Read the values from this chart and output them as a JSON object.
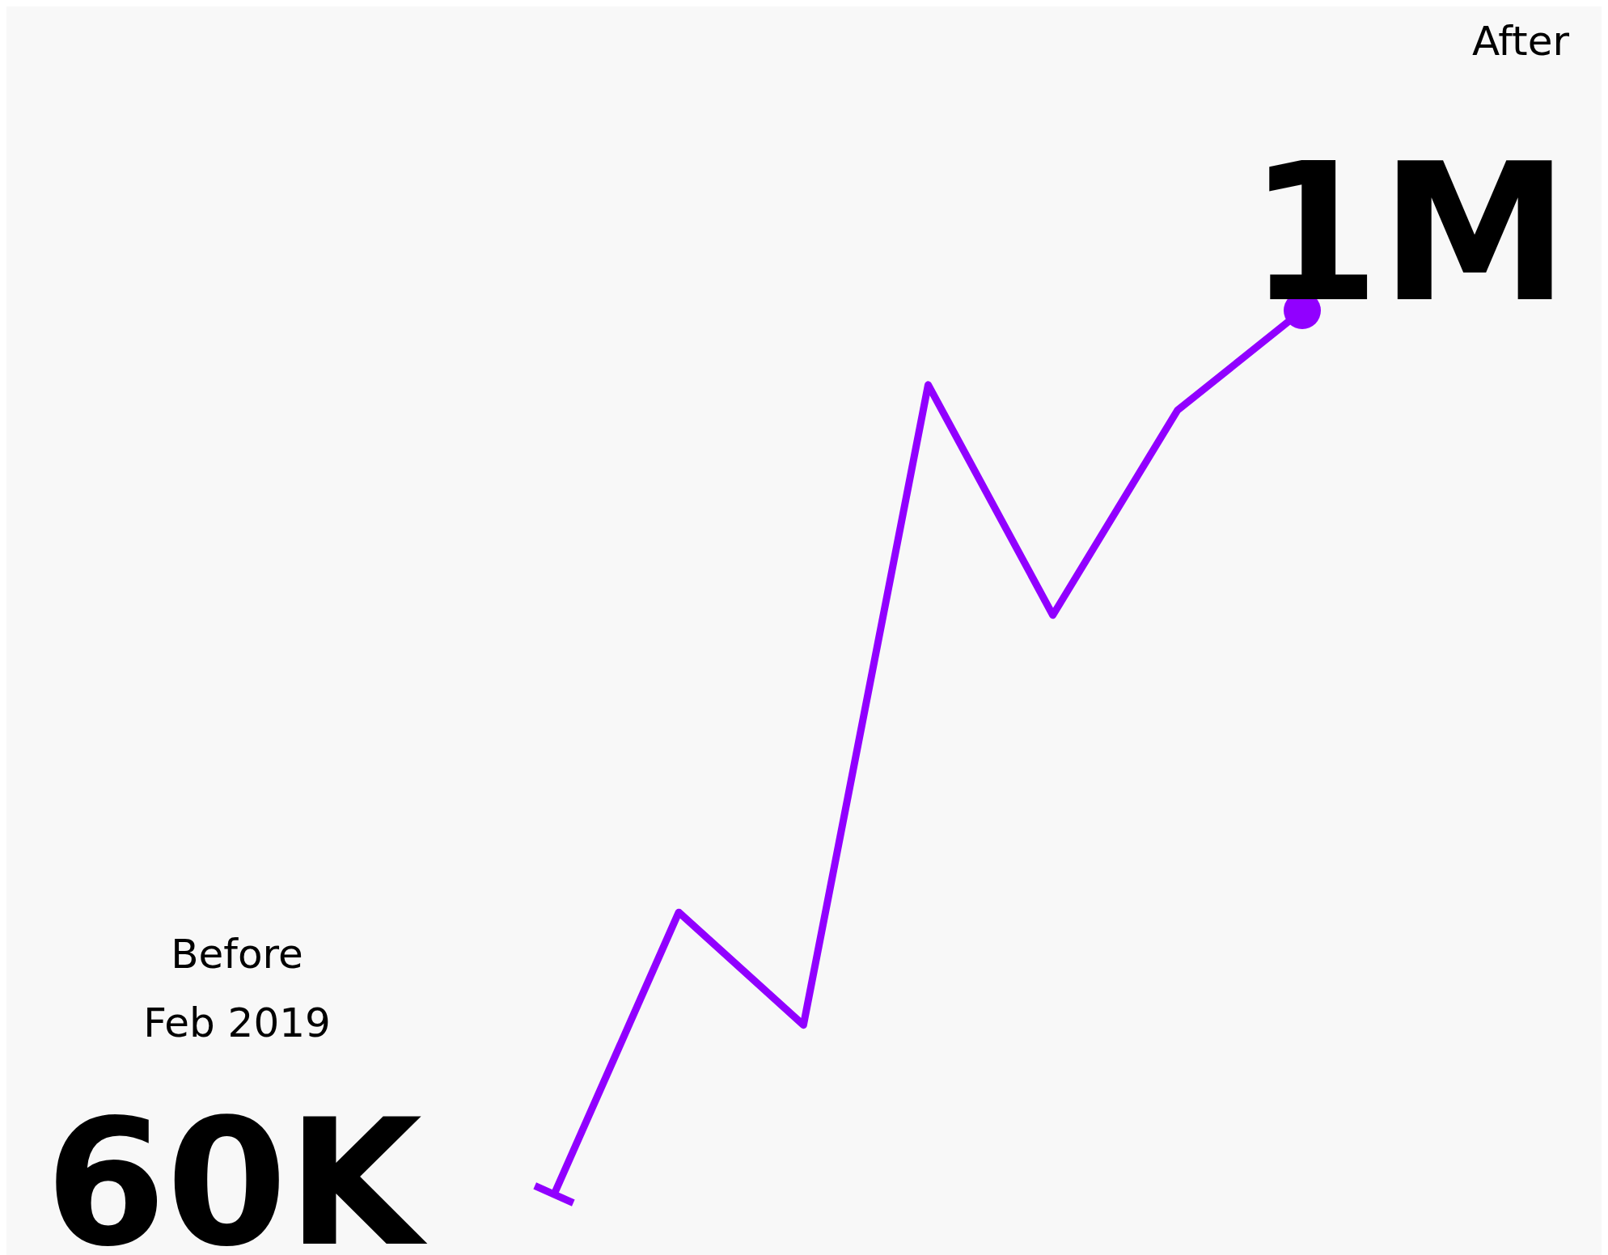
{
  "chart_data": {
    "type": "line",
    "categories": [
      null,
      null,
      null,
      null,
      null,
      null,
      null
    ],
    "series": [
      {
        "color": "#9100ff",
        "values": [
          60000,
          360000,
          240000,
          921000,
          676000,
          894000,
          1000000
        ],
        "value_labels": [
          "60K",
          null,
          null,
          null,
          null,
          null,
          "1M"
        ]
      }
    ],
    "annotations": [
      "Before",
      "Feb 2019",
      "After"
    ],
    "line_style": "solid"
  }
}
